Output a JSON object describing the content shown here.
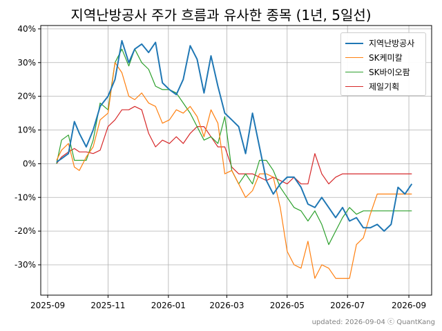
{
  "title": "지역난방공사 주가 흐름과 유사한 종목 (1년, 5일선)",
  "footer": "updated: 2026-09-04 ⓒ QuantKang",
  "chart_data": {
    "type": "line",
    "title": "지역난방공사 주가 흐름과 유사한 종목 (1년, 5일선)",
    "xlabel": "",
    "ylabel": "",
    "x_tick_labels": [
      "2025-09",
      "2025-11",
      "2026-01",
      "2026-03",
      "2026-05",
      "2026-07",
      "2026-09"
    ],
    "y_tick_labels": [
      "-30%",
      "-20%",
      "-10%",
      "0%",
      "10%",
      "20%",
      "30%",
      "40%"
    ],
    "y_ticks": [
      -30,
      -20,
      -10,
      0,
      10,
      20,
      30,
      40
    ],
    "ylim": [
      -39,
      41
    ],
    "xlim": [
      "2025-08-25",
      "2026-09-24"
    ],
    "grid": true,
    "legend_position": "top-right",
    "x": [
      "2025-09-10",
      "2025-09-15",
      "2025-09-22",
      "2025-09-28",
      "2025-10-03",
      "2025-10-10",
      "2025-10-17",
      "2025-10-24",
      "2025-11-01",
      "2025-11-08",
      "2025-11-15",
      "2025-11-22",
      "2025-11-28",
      "2025-12-05",
      "2025-12-12",
      "2025-12-19",
      "2025-12-26",
      "2026-01-02",
      "2026-01-09",
      "2026-01-16",
      "2026-01-23",
      "2026-01-30",
      "2026-02-06",
      "2026-02-13",
      "2026-02-20",
      "2026-02-27",
      "2026-03-06",
      "2026-03-13",
      "2026-03-20",
      "2026-03-27",
      "2026-04-03",
      "2026-04-10",
      "2026-04-17",
      "2026-04-24",
      "2026-05-01",
      "2026-05-08",
      "2026-05-15",
      "2026-05-22",
      "2026-05-29",
      "2026-06-05",
      "2026-06-12",
      "2026-06-19",
      "2026-06-26",
      "2026-07-03",
      "2026-07-10",
      "2026-07-17",
      "2026-07-24",
      "2026-07-31",
      "2026-08-07",
      "2026-08-14",
      "2026-08-21",
      "2026-08-28",
      "2026-09-04"
    ],
    "series": [
      {
        "name": "지역난방공사",
        "color": "#1f77b4",
        "width": 2,
        "values": [
          0.5,
          1.5,
          3,
          12.5,
          9,
          5,
          10,
          17,
          20,
          25,
          36.5,
          30,
          34,
          35.5,
          33,
          36,
          24,
          22,
          20.5,
          25,
          35,
          31,
          21,
          32,
          23,
          15,
          13,
          11,
          3,
          15,
          5,
          -5,
          -9,
          -6,
          -4,
          -4,
          -7,
          -12,
          -13,
          -10,
          -13,
          -16,
          -13,
          -17,
          -16,
          -19,
          -19,
          -18,
          -20,
          -18,
          -7,
          -9,
          -6
        ]
      },
      {
        "name": "SK케미칼",
        "color": "#ff7f0e",
        "width": 1.2,
        "values": [
          1,
          4,
          6,
          -1,
          -2,
          2,
          5,
          13,
          15,
          30,
          27,
          20,
          19,
          21,
          18,
          17,
          12,
          13,
          16,
          15,
          17,
          14,
          8,
          16,
          12,
          -3,
          -2,
          -6,
          -10,
          -8,
          -3,
          -3,
          -4,
          -13,
          -26,
          -30,
          -31,
          -23,
          -34,
          -30,
          -31,
          -34,
          -34,
          -34,
          -24,
          -22,
          -15,
          -9,
          -9,
          -9,
          -9,
          -9,
          -9
        ]
      },
      {
        "name": "SK바이오팜",
        "color": "#2ca02c",
        "width": 1.2,
        "values": [
          0,
          7,
          8.5,
          1,
          1,
          1,
          7,
          18,
          16,
          30,
          34,
          29,
          34,
          30,
          28,
          23,
          22,
          22,
          21,
          18,
          15,
          11,
          7,
          8,
          6,
          14,
          -2,
          -6,
          -3,
          -6,
          1,
          1,
          -2,
          -7,
          -10,
          -13,
          -14,
          -17,
          -14,
          -18,
          -24,
          -20,
          -16,
          -13,
          -15,
          -14,
          -14,
          -14,
          -14,
          -14,
          -14,
          -14,
          -14
        ]
      },
      {
        "name": "제일기획",
        "color": "#d62728",
        "width": 1.2,
        "values": [
          0,
          2,
          3.5,
          4.5,
          3.5,
          3.5,
          3,
          4,
          11,
          13,
          16,
          16,
          17,
          16,
          9,
          5,
          7,
          6,
          8,
          6,
          9,
          11,
          11,
          8,
          5,
          5,
          -1,
          -3,
          -3,
          -3,
          -4,
          -5,
          -4,
          -5,
          -6,
          -4,
          -6,
          -6,
          3,
          -3,
          -6,
          -4,
          -3,
          -3,
          -3,
          -3,
          -3,
          -3,
          -3,
          -3,
          -3,
          -3,
          -3
        ]
      }
    ]
  }
}
